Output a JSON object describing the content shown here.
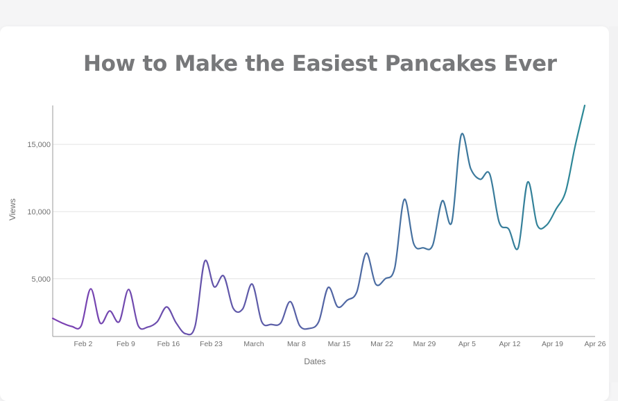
{
  "chart_data": {
    "type": "line",
    "title": "How to Make the Easiest Pancakes Ever",
    "xlabel": "Dates",
    "ylabel": "Views",
    "grid": true,
    "legend": "none",
    "colors": {
      "start": "#7c3fb3",
      "end": "#2a8a96",
      "axis": "#9a9a9a",
      "grid": "#e3e3e3",
      "text": "#6f6f6f"
    },
    "x_range": [
      "2024-01-28",
      "2024-04-26"
    ],
    "ylim": [
      700,
      17900
    ],
    "x_ticks": [
      {
        "label": "Feb 2",
        "date": "2024-02-02"
      },
      {
        "label": "Feb 9",
        "date": "2024-02-09"
      },
      {
        "label": "Feb 16",
        "date": "2024-02-16"
      },
      {
        "label": "Feb 23",
        "date": "2024-02-23"
      },
      {
        "label": "March",
        "date": "2024-03-01"
      },
      {
        "label": "Mar 8",
        "date": "2024-03-08"
      },
      {
        "label": "Mar 15",
        "date": "2024-03-15"
      },
      {
        "label": "Mar 22",
        "date": "2024-03-22"
      },
      {
        "label": "Mar 29",
        "date": "2024-03-29"
      },
      {
        "label": "Apr 5",
        "date": "2024-04-05"
      },
      {
        "label": "Apr 12",
        "date": "2024-04-12"
      },
      {
        "label": "Apr 19",
        "date": "2024-04-19"
      },
      {
        "label": "Apr 26",
        "date": "2024-04-26"
      }
    ],
    "y_ticks": [
      {
        "label": "5,000",
        "value": 5000
      },
      {
        "label": "10,000",
        "value": 10000
      },
      {
        "label": "15,000",
        "value": 15000
      }
    ],
    "series": [
      {
        "x": [
          "2024-01-28",
          "2024-01-29",
          "2024-01-30",
          "2024-01-31",
          "2024-02-01",
          "2024-02-02",
          "2024-02-03",
          "2024-02-04",
          "2024-02-05",
          "2024-02-06",
          "2024-02-07",
          "2024-02-08",
          "2024-02-09",
          "2024-02-10",
          "2024-02-11",
          "2024-02-12",
          "2024-02-13",
          "2024-02-14",
          "2024-02-15",
          "2024-02-16",
          "2024-02-17",
          "2024-02-18",
          "2024-02-19",
          "2024-02-20",
          "2024-02-21",
          "2024-02-22",
          "2024-02-23",
          "2024-02-24",
          "2024-02-25",
          "2024-02-26",
          "2024-02-27",
          "2024-02-28",
          "2024-02-29",
          "2024-03-01",
          "2024-03-02",
          "2024-03-03",
          "2024-03-04",
          "2024-03-05",
          "2024-03-06",
          "2024-03-07",
          "2024-03-08",
          "2024-03-09",
          "2024-03-10",
          "2024-03-11",
          "2024-03-12",
          "2024-03-13",
          "2024-03-14",
          "2024-03-15",
          "2024-03-16",
          "2024-03-17",
          "2024-03-18",
          "2024-03-19",
          "2024-03-20",
          "2024-03-21",
          "2024-03-22",
          "2024-03-23",
          "2024-03-24",
          "2024-03-25",
          "2024-03-26",
          "2024-03-27",
          "2024-03-28",
          "2024-03-29",
          "2024-03-30",
          "2024-03-31",
          "2024-04-01",
          "2024-04-02",
          "2024-04-03",
          "2024-04-04",
          "2024-04-05",
          "2024-04-06",
          "2024-04-07",
          "2024-04-08",
          "2024-04-09",
          "2024-04-10",
          "2024-04-11",
          "2024-04-12",
          "2024-04-13",
          "2024-04-14",
          "2024-04-15",
          "2024-04-16",
          "2024-04-17",
          "2024-04-18",
          "2024-04-19",
          "2024-04-20",
          "2024-04-21",
          "2024-04-22",
          "2024-04-23",
          "2024-04-24",
          "2024-04-25",
          "2024-04-26"
        ],
        "values": [
          2050,
          1700,
          1450,
          1500,
          4250,
          1700,
          2600,
          1800,
          4200,
          1500,
          1400,
          1800,
          2900,
          1700,
          900,
          1500,
          6300,
          4400,
          5200,
          2800,
          2750,
          4600,
          1800,
          1600,
          1700,
          3300,
          1500,
          1300,
          1800,
          4350,
          2900,
          3400,
          4000,
          6900,
          4600,
          5000,
          5800,
          10900,
          7600,
          7300,
          7500,
          10800,
          9200,
          15700,
          13200,
          12400,
          12800,
          9200,
          8700,
          7300,
          12200,
          9000,
          9000,
          10200,
          11500,
          14900,
          17900,
          null,
          null,
          null,
          null,
          null,
          null,
          null,
          null,
          null,
          null,
          null,
          null,
          null,
          null,
          null,
          null,
          null,
          null,
          null,
          null,
          null,
          null,
          null,
          null,
          null,
          null,
          null,
          null,
          null,
          null,
          null,
          null,
          null
        ]
      }
    ]
  }
}
